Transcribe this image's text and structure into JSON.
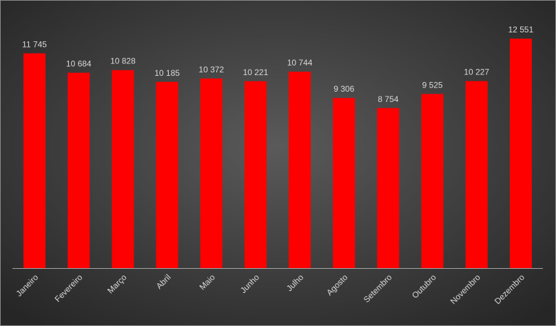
{
  "chart_data": {
    "type": "bar",
    "categories": [
      "Janeiro",
      "Fevereiro",
      "Março",
      "Abril",
      "Maio",
      "Junho",
      "Julho",
      "Agosto",
      "Setembro",
      "Outubro",
      "Novembro",
      "Dezembro"
    ],
    "values": [
      11745,
      10684,
      10828,
      10185,
      10372,
      10221,
      10744,
      9306,
      8754,
      9525,
      10227,
      12551
    ],
    "value_labels": [
      "11 745",
      "10 684",
      "10 828",
      "10 185",
      "10 372",
      "10 221",
      "10 744",
      "9 306",
      "8 754",
      "9 525",
      "10 227",
      "12 551"
    ],
    "color": "#ff0000",
    "ylim": [
      0,
      14000
    ]
  }
}
